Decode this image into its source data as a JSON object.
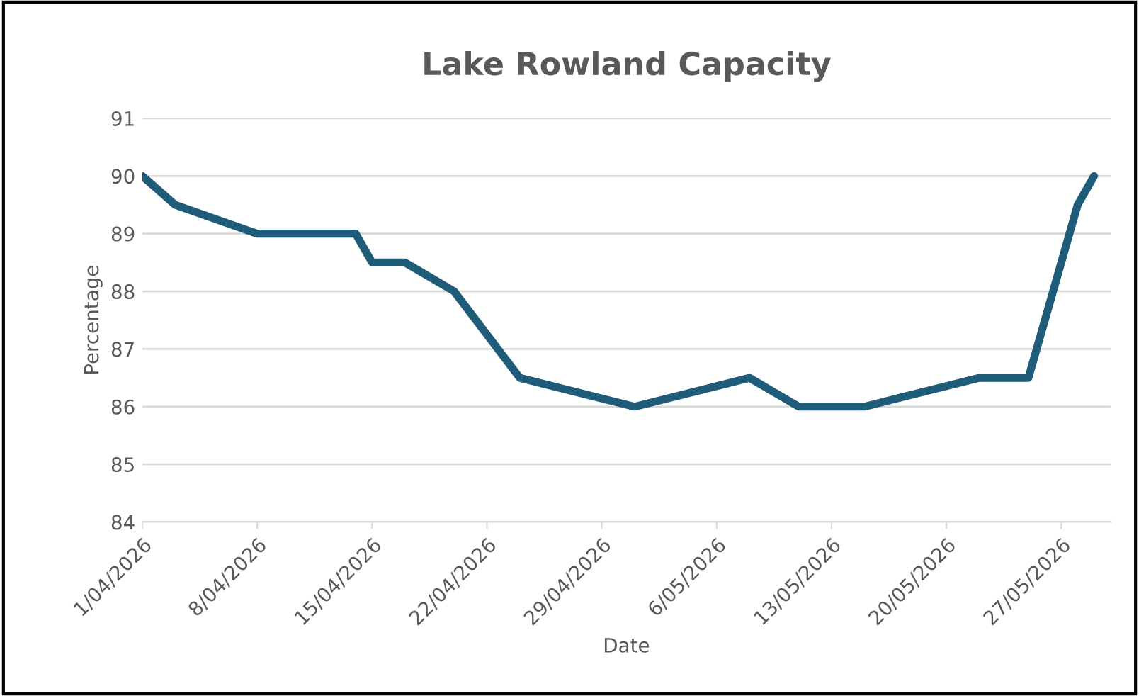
{
  "chart_data": {
    "type": "line",
    "title": "Lake Rowland Capacity",
    "xlabel": "Date",
    "ylabel": "Percentage",
    "x": [
      "2026-04-01",
      "2026-04-03",
      "2026-04-08",
      "2026-04-14",
      "2026-04-15",
      "2026-04-17",
      "2026-04-20",
      "2026-04-24",
      "2026-05-01",
      "2026-05-08",
      "2026-05-11",
      "2026-05-15",
      "2026-05-22",
      "2026-05-25",
      "2026-05-28",
      "2026-05-29"
    ],
    "series": [
      {
        "color": "#1f5c7a",
        "values": [
          90,
          89.5,
          89,
          89,
          88.5,
          88.5,
          88,
          86.5,
          86,
          86.5,
          86,
          86,
          86.5,
          86.5,
          89.5,
          90
        ]
      }
    ],
    "xlim": [
      "2026-04-01",
      "2026-05-30"
    ],
    "xticks": [
      {
        "value": "2026-04-01",
        "label": "1/04/2026"
      },
      {
        "value": "2026-04-08",
        "label": "8/04/2026"
      },
      {
        "value": "2026-04-15",
        "label": "15/04/2026"
      },
      {
        "value": "2026-04-22",
        "label": "22/04/2026"
      },
      {
        "value": "2026-04-29",
        "label": "29/04/2026"
      },
      {
        "value": "2026-05-06",
        "label": "6/05/2026"
      },
      {
        "value": "2026-05-13",
        "label": "13/05/2026"
      },
      {
        "value": "2026-05-20",
        "label": "20/05/2026"
      },
      {
        "value": "2026-05-27",
        "label": "27/05/2026"
      }
    ],
    "ylim": [
      84,
      91
    ],
    "yticks": [
      84,
      85,
      86,
      87,
      88,
      89,
      90,
      91
    ],
    "grid": "y",
    "legend": false,
    "marker": "none",
    "line_style": "solid"
  }
}
